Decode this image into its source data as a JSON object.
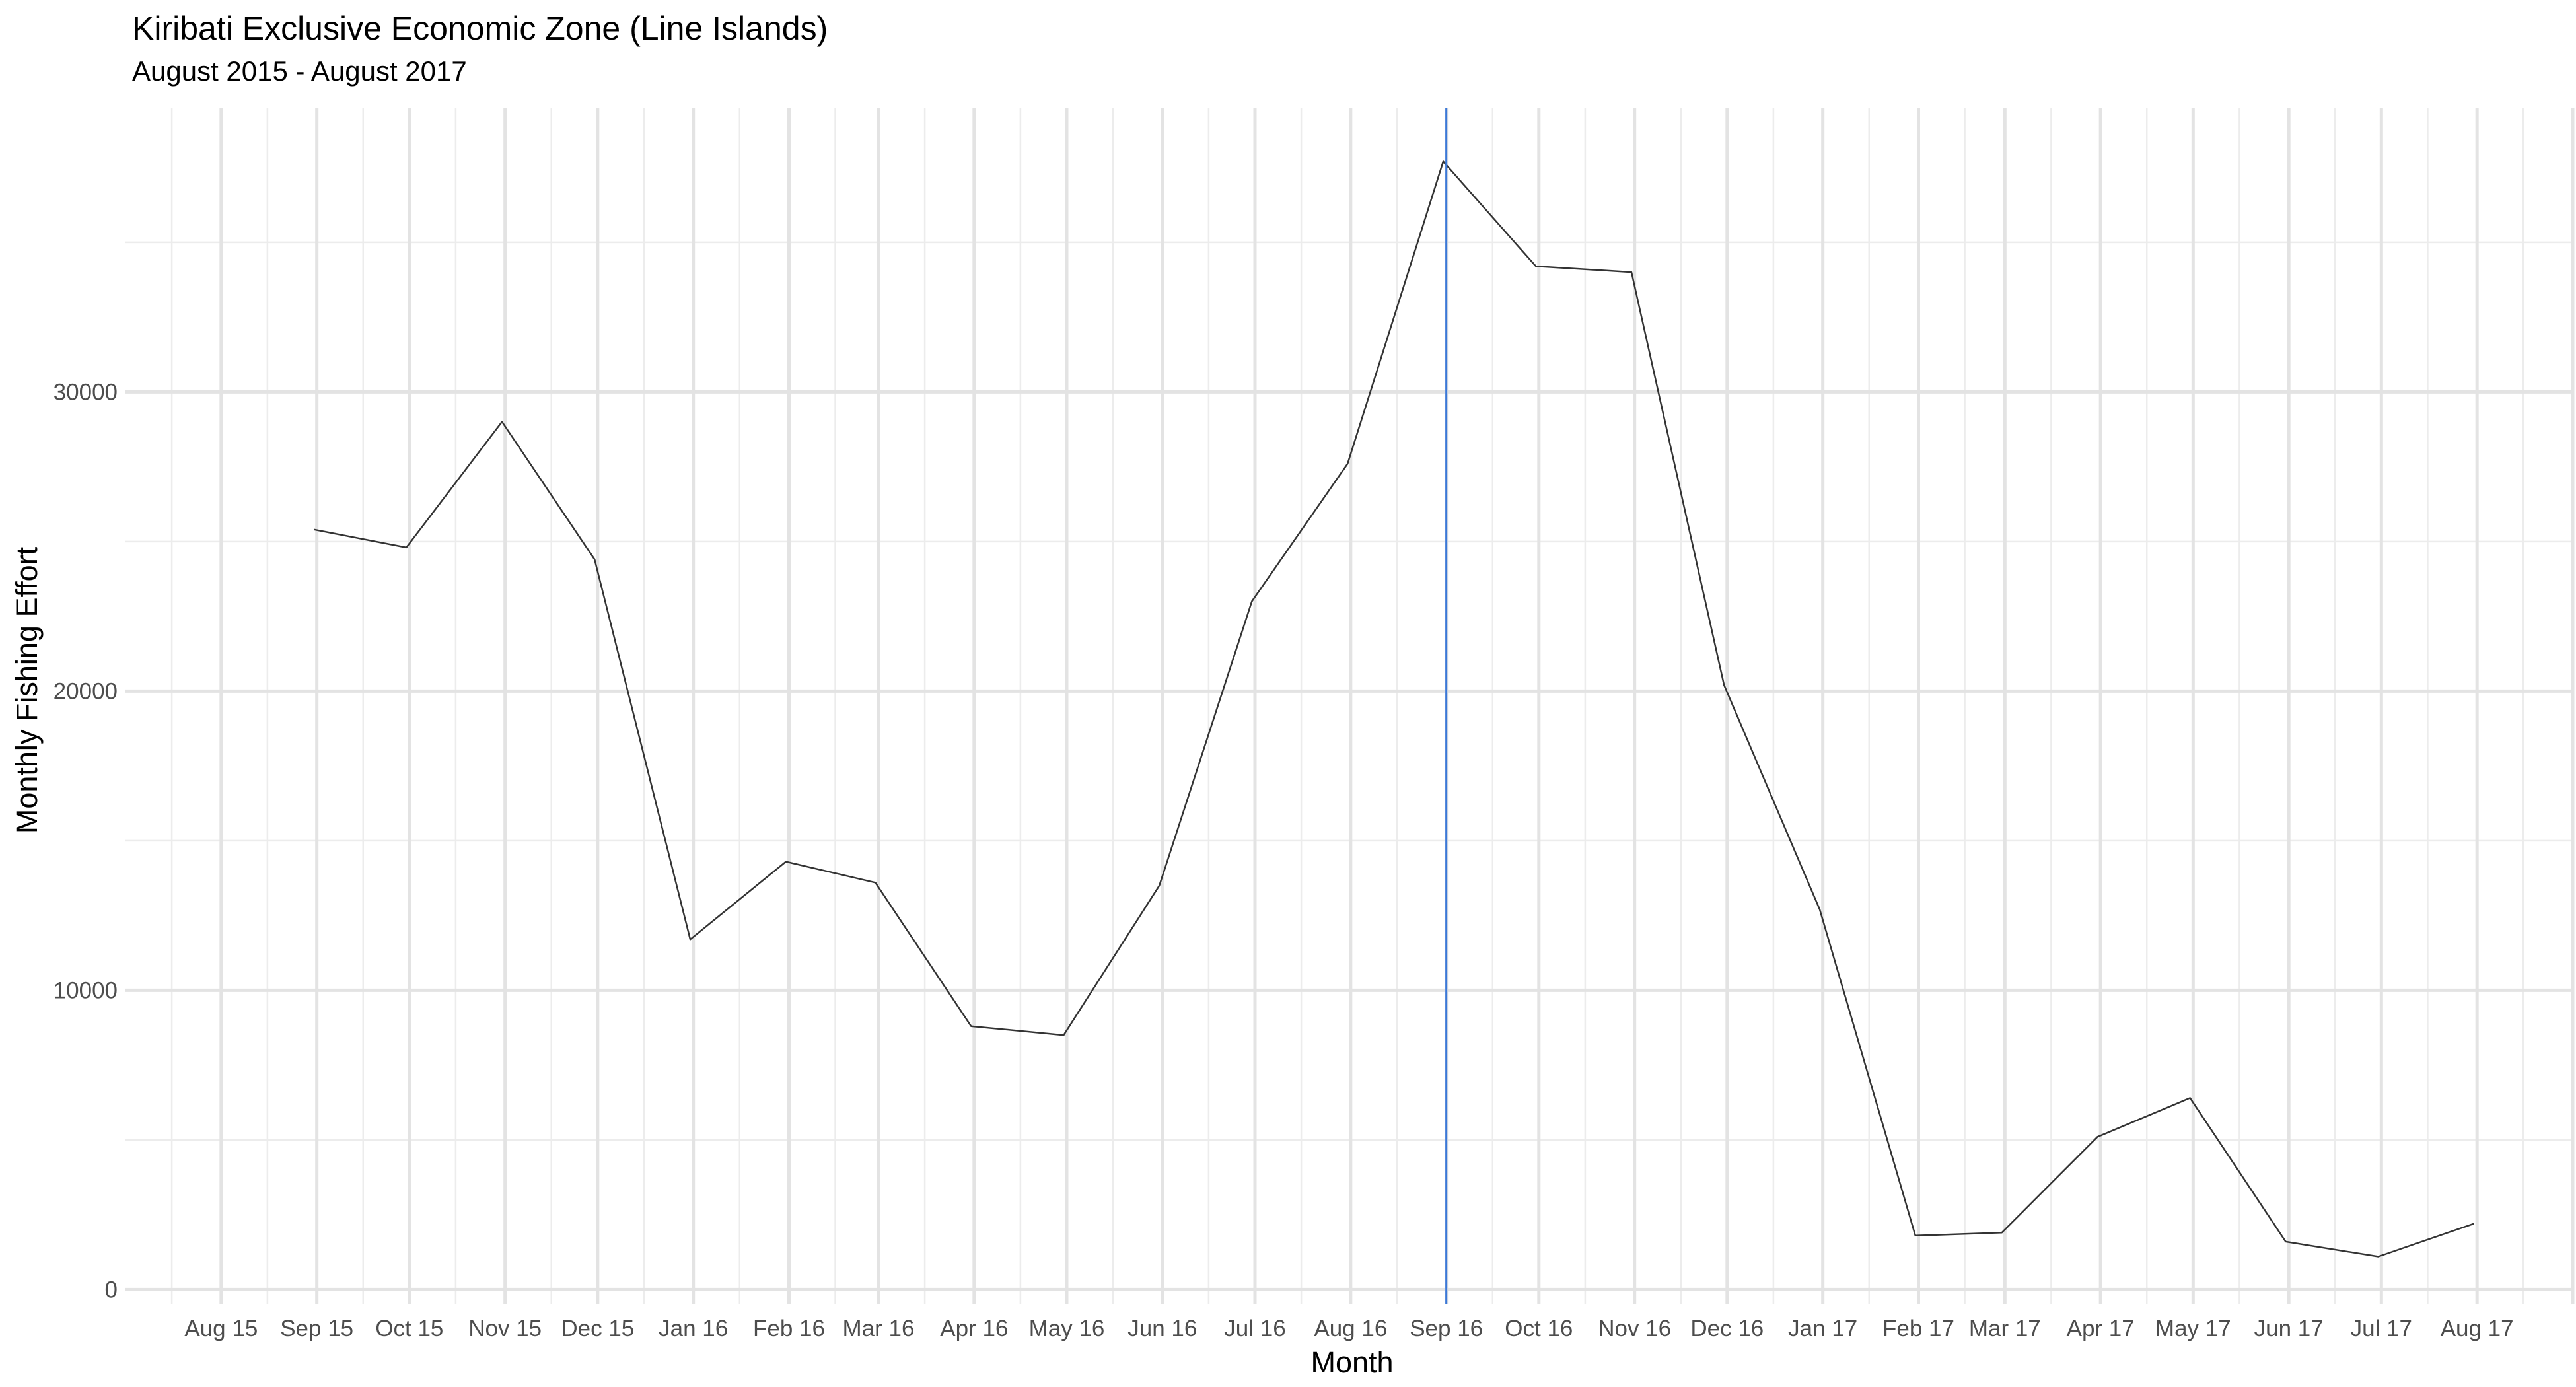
{
  "chart_data": {
    "type": "line",
    "title": "Kiribati Exclusive Economic Zone (Line Islands)",
    "subtitle": "August 2015 - August 2017",
    "xlabel": "Month",
    "ylabel": "Monthly Fishing Effort",
    "x_tick_labels": [
      "Aug 15",
      "Sep 15",
      "Oct 15",
      "Nov 15",
      "Dec 15",
      "Jan 16",
      "Feb 16",
      "Mar 16",
      "Apr 16",
      "May 16",
      "Jun 16",
      "Jul 16",
      "Aug 16",
      "Sep 16",
      "Oct 16",
      "Nov 16",
      "Dec 16",
      "Jan 17",
      "Feb 17",
      "Mar 17",
      "Apr 17",
      "May 17",
      "Jun 17",
      "Jul 17",
      "Aug 17"
    ],
    "y_ticks": [
      0,
      10000,
      20000,
      30000
    ],
    "ylim": [
      -500,
      39500
    ],
    "xlim": [
      "2015-07-01",
      "2017-09-01"
    ],
    "grid": true,
    "vline": {
      "x": "2016-09-01",
      "color": "#3a78d8"
    },
    "series": [
      {
        "color": "#333333",
        "x": [
          "2015-08-31",
          "2015-09-30",
          "2015-10-31",
          "2015-11-30",
          "2015-12-31",
          "2016-01-31",
          "2016-02-29",
          "2016-03-31",
          "2016-04-30",
          "2016-05-31",
          "2016-06-30",
          "2016-07-31",
          "2016-08-31",
          "2016-09-30",
          "2016-10-31",
          "2016-11-30",
          "2016-12-31",
          "2017-01-31",
          "2017-02-28",
          "2017-03-31",
          "2017-04-30",
          "2017-05-31",
          "2017-06-30",
          "2017-07-31"
        ],
        "y": [
          25400,
          24800,
          29000,
          24400,
          11700,
          14300,
          13600,
          8800,
          8500,
          13500,
          23000,
          27600,
          37700,
          34200,
          34000,
          20200,
          12700,
          1800,
          1900,
          5100,
          6400,
          1600,
          1100,
          2200
        ]
      }
    ]
  }
}
